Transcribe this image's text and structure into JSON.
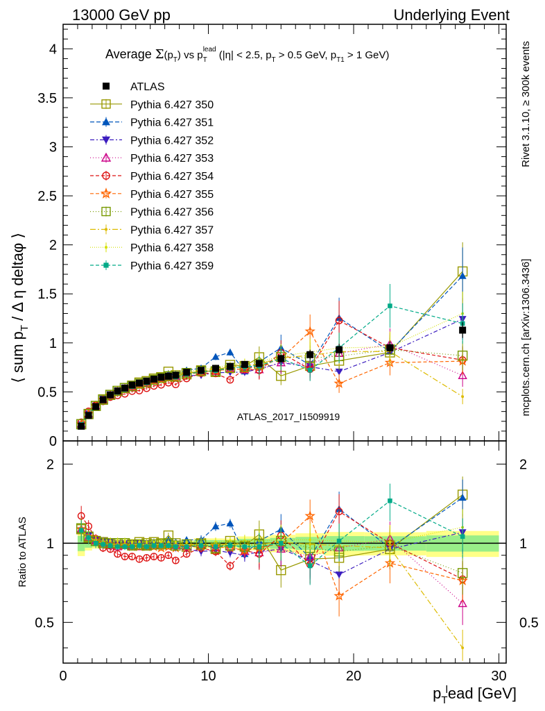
{
  "header": {
    "left": "13000 GeV pp",
    "right": "Underlying Event"
  },
  "side_labels": {
    "rivet": "Rivet 3.1.10, ≥ 300k events",
    "mcplots": "mcplots.cern.ch [arXiv:1306.3436]"
  },
  "watermark": "ATLAS_2017_I1509919",
  "chart_data": {
    "type": "line",
    "title": "Average Σ(p_T) vs p_T^lead (|η| < 2.5, p_T > 0.5 GeV, p_T1 > 1 GeV)",
    "title_parts": {
      "prefix": "Average ",
      "sigma": "Σ",
      "pT_open": "(p",
      "pT_sub": "T",
      "pT_close": ")",
      "vs": " vs p",
      "sub_T": "T",
      "sup_lead": "lead",
      "cuts_a": " (|η| < 2.5, p",
      "cuts_sub1": "T",
      "cuts_b": " > 0.5 GeV, p",
      "cuts_sub2": "T1",
      "cuts_c": " > 1 GeV)"
    },
    "xlabel": "p_T^l ead [GeV]",
    "xlabel_parts": {
      "p": "p",
      "sub": "T",
      "sup": "l",
      "rest": "ead [GeV]"
    },
    "ylabel": "⟨ sum p_T / Δ η deltaφ ⟩",
    "ylabel_parts": {
      "a": "⟨ sum p",
      "sub": "T",
      "b": " / Δ η deltaφ ⟩"
    },
    "ratio_ylabel": "Ratio to ATLAS",
    "xlim": [
      0,
      30.5
    ],
    "ylim": [
      0,
      4.25
    ],
    "ratio_ylim": [
      0.35,
      2.45
    ],
    "ratio_scale": "log",
    "x_ticks": [
      0,
      10,
      20,
      30
    ],
    "y_ticks": [
      0,
      0.5,
      1,
      1.5,
      2,
      2.5,
      3,
      3.5,
      4
    ],
    "y_tick_labels": [
      "0",
      "0.5",
      "1",
      "1.5",
      "2",
      "2.5",
      "3",
      "3.5",
      "4"
    ],
    "ratio_ticks": [
      0.5,
      1,
      2
    ],
    "ratio_tick_labels": [
      "0.5",
      "1",
      "2"
    ],
    "legend_position": "top-left",
    "x": [
      1.25,
      1.75,
      2.25,
      2.75,
      3.25,
      3.75,
      4.25,
      4.75,
      5.25,
      5.75,
      6.25,
      6.75,
      7.25,
      7.75,
      8.5,
      9.5,
      10.5,
      11.5,
      12.5,
      13.5,
      15,
      17,
      19,
      22.5,
      27.5
    ],
    "data_series": {
      "name": "ATLAS",
      "color": "#000000",
      "values": [
        0.15,
        0.26,
        0.35,
        0.42,
        0.47,
        0.51,
        0.54,
        0.57,
        0.59,
        0.61,
        0.63,
        0.65,
        0.66,
        0.67,
        0.7,
        0.72,
        0.74,
        0.76,
        0.78,
        0.79,
        0.84,
        0.88,
        0.93,
        0.95,
        1.13
      ],
      "errors": [
        0.01,
        0.01,
        0.01,
        0.01,
        0.01,
        0.01,
        0.01,
        0.01,
        0.01,
        0.01,
        0.01,
        0.01,
        0.01,
        0.01,
        0.01,
        0.02,
        0.02,
        0.02,
        0.03,
        0.03,
        0.04,
        0.05,
        0.06,
        0.06,
        0.08
      ]
    },
    "series": [
      {
        "name": "Pythia 6.427 350",
        "color": "#999900",
        "dash": "",
        "marker": "square-open",
        "ratio": [
          1.13,
          1.05,
          1.02,
          1.01,
          1.0,
          1.0,
          1.0,
          0.99,
          1.01,
          1.0,
          1.01,
          1.0,
          1.07,
          1.0,
          0.97,
          1.0,
          0.95,
          1.02,
          0.98,
          1.08,
          0.79,
          0.87,
          0.88,
          0.95,
          1.53
        ]
      },
      {
        "name": "Pythia 6.427 351",
        "color": "#0055bb",
        "dash": "6,3",
        "marker": "triangle-up",
        "ratio": [
          1.12,
          1.07,
          1.03,
          1.02,
          1.01,
          1.0,
          1.0,
          1.0,
          1.0,
          1.0,
          1.01,
          1.0,
          1.03,
          1.01,
          1.03,
          1.03,
          1.16,
          1.19,
          0.91,
          1.02,
          1.13,
          0.88,
          1.35,
          0.96,
          1.49
        ]
      },
      {
        "name": "Pythia 6.427 352",
        "color": "#3b1cbf",
        "dash": "6,3,2,3",
        "marker": "triangle-down",
        "ratio": [
          1.12,
          1.07,
          1.03,
          1.02,
          1.01,
          1.0,
          1.0,
          1.0,
          1.0,
          1.0,
          0.98,
          0.98,
          0.98,
          0.96,
          0.95,
          0.93,
          0.94,
          0.92,
          0.9,
          0.93,
          0.95,
          0.86,
          0.76,
          0.95,
          1.1
        ]
      },
      {
        "name": "Pythia 6.427 353",
        "color": "#cc0088",
        "dash": "1,3",
        "marker": "triangle-up-open",
        "ratio": [
          1.13,
          1.05,
          1.02,
          1.0,
          0.98,
          0.97,
          0.98,
          0.97,
          0.97,
          0.97,
          0.98,
          0.99,
          0.99,
          0.98,
          0.97,
          0.98,
          0.96,
          0.97,
          0.93,
          0.92,
          0.95,
          0.89,
          0.96,
          1.04,
          0.59
        ]
      },
      {
        "name": "Pythia 6.427 354",
        "color": "#dd1111",
        "dash": "5,3",
        "marker": "circle-open",
        "ratio": [
          1.27,
          1.16,
          1.04,
          0.96,
          0.95,
          0.91,
          0.89,
          0.89,
          0.87,
          0.88,
          0.89,
          0.88,
          0.9,
          0.86,
          0.91,
          0.96,
          0.93,
          0.82,
          0.94,
          0.91,
          1.07,
          0.83,
          1.32,
          1.0,
          0.73
        ]
      },
      {
        "name": "Pythia 6.427 355",
        "color": "#ff6600",
        "dash": "5,3",
        "marker": "star",
        "ratio": [
          1.13,
          1.06,
          1.02,
          1.0,
          0.99,
          0.98,
          0.98,
          0.97,
          0.97,
          0.97,
          0.97,
          0.96,
          0.97,
          0.96,
          0.97,
          0.97,
          0.97,
          0.96,
          0.94,
          0.96,
          1.0,
          1.27,
          0.63,
          0.84,
          0.72
        ]
      },
      {
        "name": "Pythia 6.427 356",
        "color": "#779900",
        "dash": "1,3",
        "marker": "square-open",
        "ratio": [
          1.14,
          1.06,
          1.02,
          1.0,
          1.0,
          1.0,
          1.0,
          0.98,
          0.99,
          0.98,
          0.99,
          0.99,
          1.0,
          0.98,
          0.99,
          0.99,
          0.96,
          0.98,
          0.97,
          0.99,
          1.02,
          0.96,
          0.93,
          0.98,
          0.77
        ]
      },
      {
        "name": "Pythia 6.427 357",
        "color": "#ddbb00",
        "dash": "8,3,2,3",
        "marker": "dot",
        "ratio": [
          1.12,
          1.05,
          1.02,
          1.0,
          0.99,
          0.99,
          0.99,
          0.99,
          0.99,
          0.99,
          0.99,
          0.99,
          0.99,
          0.99,
          0.99,
          0.99,
          0.99,
          0.99,
          0.99,
          0.99,
          1.01,
          0.99,
          0.98,
          0.96,
          0.4
        ]
      },
      {
        "name": "Pythia 6.427 358",
        "color": "#d4e000",
        "dash": "1,2",
        "marker": "dot",
        "ratio": [
          1.12,
          1.05,
          1.03,
          1.02,
          1.02,
          1.02,
          1.02,
          1.01,
          1.01,
          1.01,
          1.01,
          1.01,
          1.01,
          1.01,
          1.01,
          1.01,
          1.01,
          1.02,
          1.02,
          1.02,
          1.03,
          1.03,
          1.02,
          1.01,
          1.15
        ]
      },
      {
        "name": "Pythia 6.427 359",
        "color": "#00aa88",
        "dash": "5,3",
        "marker": "square-small",
        "ratio": [
          1.12,
          1.05,
          1.0,
          0.99,
          0.98,
          0.97,
          0.97,
          0.97,
          0.98,
          0.97,
          0.98,
          0.98,
          0.98,
          0.97,
          0.97,
          0.98,
          0.97,
          0.98,
          0.97,
          0.97,
          1.0,
          0.82,
          1.02,
          1.45,
          1.06
        ]
      }
    ]
  }
}
